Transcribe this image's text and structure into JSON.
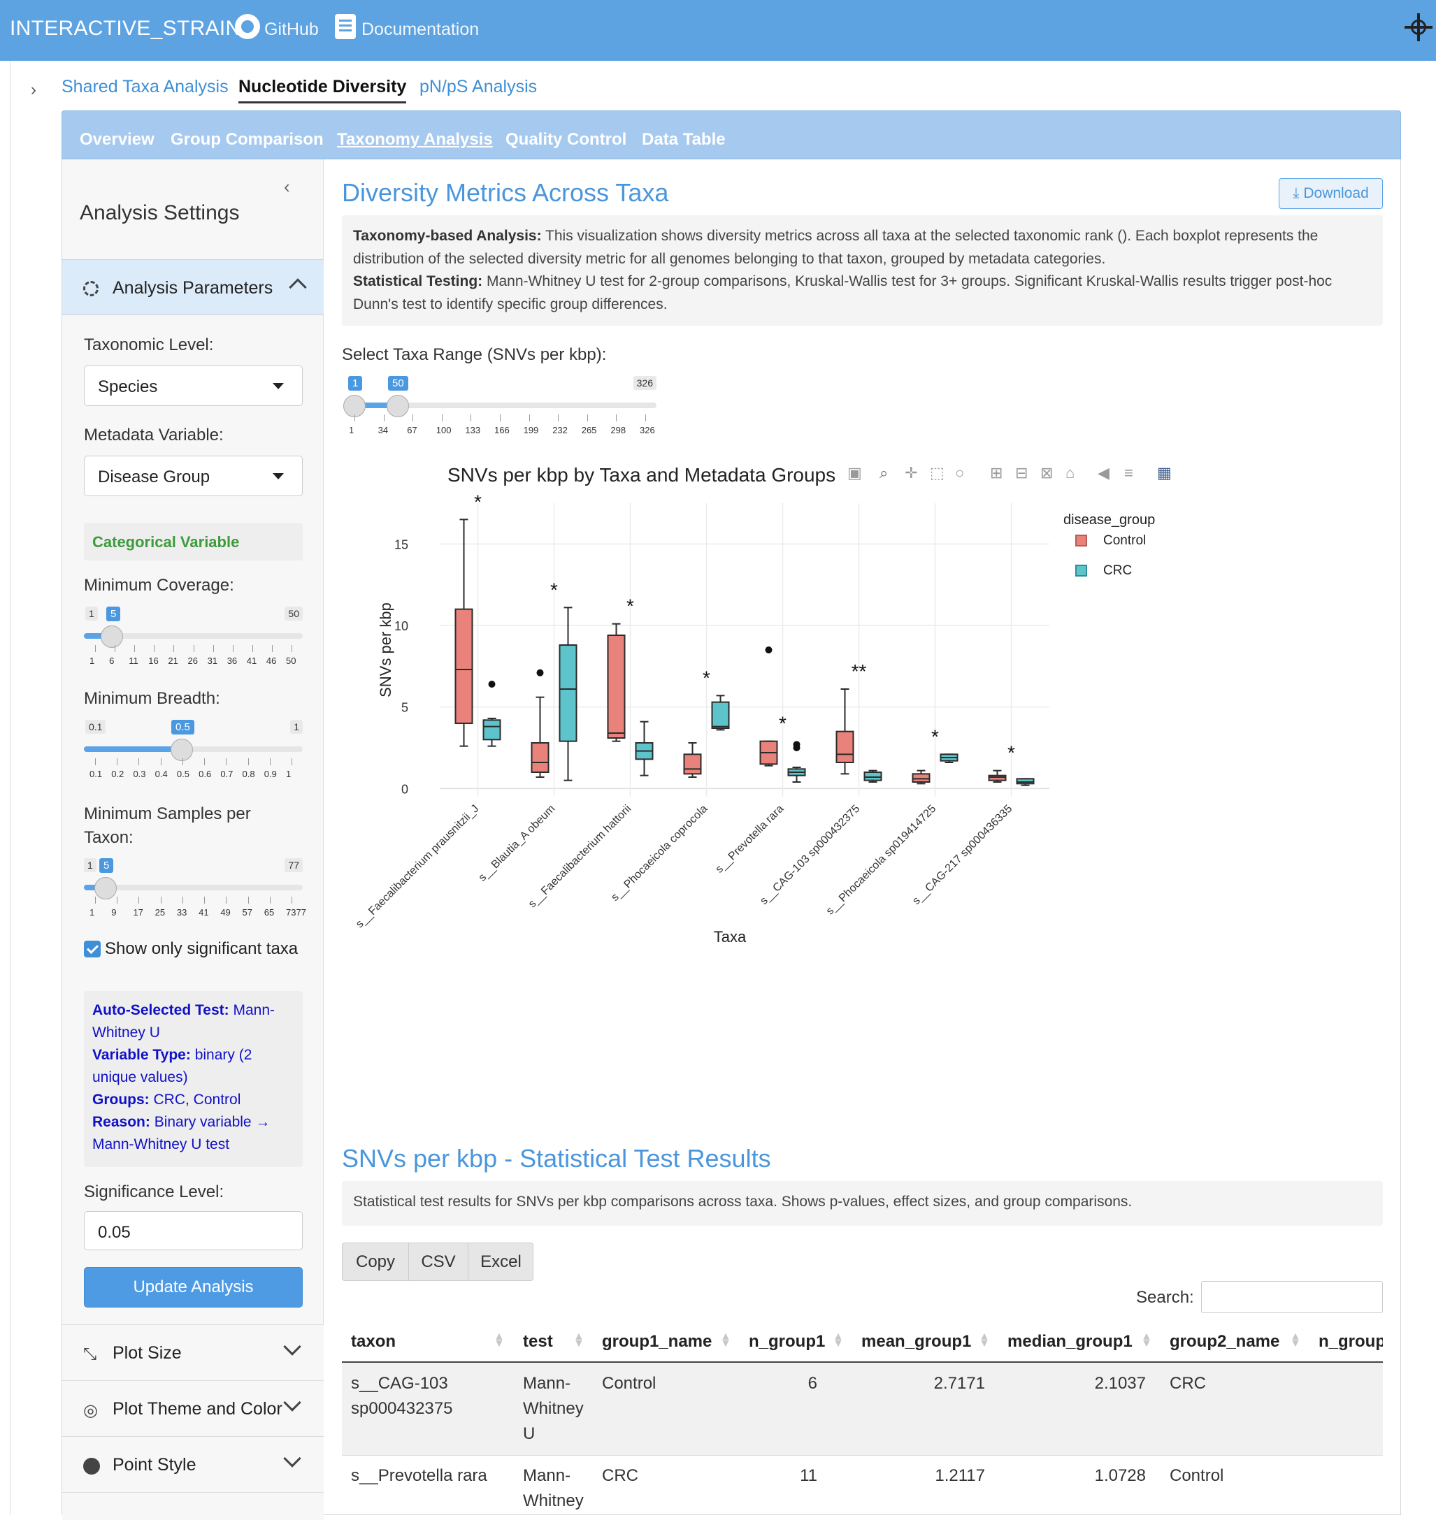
{
  "app": {
    "brand": "INTERACTIVE_STRAIN",
    "github": "GitHub",
    "documentation": "Documentation"
  },
  "page_tabs": [
    "Shared Taxa Analysis",
    "Nucleotide Diversity",
    "pN/pS Analysis"
  ],
  "sub_tabs": [
    "Overview",
    "Group Comparison",
    "Taxonomy Analysis",
    "Quality Control",
    "Data Table"
  ],
  "sidebar": {
    "title": "Analysis Settings",
    "params_header": "Analysis Parameters",
    "tax_level_label": "Taxonomic Level:",
    "tax_level_value": "Species",
    "meta_label": "Metadata Variable:",
    "meta_value": "Disease Group",
    "variable_badge": "Categorical Variable",
    "min_cov_label": "Minimum Coverage:",
    "min_cov": {
      "min": "1",
      "value": "5",
      "max": "50",
      "ticks": [
        "1",
        "6",
        "11",
        "16",
        "21",
        "26",
        "31",
        "36",
        "41",
        "46",
        "50"
      ]
    },
    "min_breadth_label": "Minimum Breadth:",
    "min_breadth": {
      "min": "0.1",
      "value": "0.5",
      "max": "1",
      "ticks": [
        "0.1",
        "0.2",
        "0.3",
        "0.4",
        "0.5",
        "0.6",
        "0.7",
        "0.8",
        "0.9",
        "1"
      ]
    },
    "min_samples_label": "Minimum Samples per Taxon:",
    "min_samples": {
      "min": "1",
      "value": "5",
      "max": "77",
      "ticks": [
        "1",
        "9",
        "17",
        "25",
        "33",
        "41",
        "49",
        "57",
        "65",
        "7377"
      ]
    },
    "show_sig_label": "Show only significant taxa",
    "info": {
      "test_key": "Auto-Selected Test:",
      "test_val": "Mann-Whitney U",
      "vtype_key": "Variable Type:",
      "vtype_val": "binary (2 unique values)",
      "groups_key": "Groups:",
      "groups_val": "CRC, Control",
      "reason_key": "Reason:",
      "reason_val": "Binary variable → Mann-Whitney U test"
    },
    "sig_label": "Significance Level:",
    "sig_value": "0.05",
    "update_btn": "Update Analysis",
    "plot_size": "Plot Size",
    "plot_theme": "Plot Theme and Color",
    "point_style": "Point Style"
  },
  "main": {
    "title": "Diversity Metrics Across Taxa",
    "download": "Download",
    "desc_bold1": "Taxonomy-based Analysis:",
    "desc_text1": "This visualization shows diversity metrics across all taxa at the selected taxonomic rank (). Each boxplot represents the distribution of the selected diversity metric for all genomes belonging to that taxon, grouped by metadata categories.",
    "desc_bold2": "Statistical Testing:",
    "desc_text2": "Mann-Whitney U test for 2-group comparisons, Kruskal-Wallis test for 3+ groups. Significant Kruskal-Wallis results trigger post-hoc Dunn's test to identify specific group differences.",
    "range_label": "Select Taxa Range (SNVs per kbp):",
    "range": {
      "min": "1",
      "lo": "1",
      "hi": "50",
      "max": "326",
      "ticks": [
        "1",
        "34",
        "67",
        "100",
        "133",
        "166",
        "199",
        "232",
        "265",
        "298",
        "326"
      ]
    },
    "stats_title": "SNVs per kbp - Statistical Test Results",
    "stats_desc": "Statistical test results for SNVs per kbp comparisons across taxa. Shows p-values, effect sizes, and group comparisons.",
    "btns": [
      "Copy",
      "CSV",
      "Excel"
    ],
    "search_label": "Search:",
    "columns": [
      "taxon",
      "test",
      "group1_name",
      "n_group1",
      "mean_group1",
      "median_group1",
      "group2_name",
      "n_group"
    ],
    "rows": [
      {
        "taxon": "s__CAG-103 sp000432375",
        "test": "Mann-Whitney U",
        "group1_name": "Control",
        "n_group1": "6",
        "mean_group1": "2.7171",
        "median_group1": "2.1037",
        "group2_name": "CRC"
      },
      {
        "taxon": "s__Prevotella rara",
        "test": "Mann-Whitney",
        "group1_name": "CRC",
        "n_group1": "11",
        "mean_group1": "1.2117",
        "median_group1": "1.0728",
        "group2_name": "Control"
      }
    ]
  },
  "chart_data": {
    "type": "box",
    "title": "SNVs per kbp by Taxa and Metadata Groups",
    "xlabel": "Taxa",
    "ylabel": "SNVs per kbp",
    "ylim": [
      -0.5,
      17.5
    ],
    "yticks": [
      0,
      5,
      10,
      15
    ],
    "legend_title": "disease_group",
    "legend_position": "top-right",
    "colors": {
      "Control": "#e8827a",
      "CRC": "#5ec4cc"
    },
    "categories": [
      "s__Faecalibacterium prausnitzii_J",
      "s__Blautia_A obeum",
      "s__Faecalibacterium hattorii",
      "s__Phocaeicola coprocola",
      "s__Prevotella rara",
      "s__CAG-103 sp000432375",
      "s__Phocaeicola sp019414725",
      "s__CAG-217 sp000436335"
    ],
    "significance": [
      "*",
      "*",
      "*",
      "*",
      "*",
      "**",
      "*",
      "*"
    ],
    "series": [
      {
        "name": "Control",
        "boxes": [
          {
            "min": 2.6,
            "q1": 4.0,
            "median": 7.3,
            "q3": 11.0,
            "max": 16.5
          },
          {
            "min": 0.7,
            "q1": 1.0,
            "median": 1.6,
            "q3": 2.8,
            "max": 5.6,
            "outliers": [
              7.1
            ]
          },
          {
            "min": 2.9,
            "q1": 3.1,
            "median": 3.4,
            "q3": 9.4,
            "max": 10.1
          },
          {
            "min": 0.7,
            "q1": 0.9,
            "median": 1.2,
            "q3": 2.1,
            "max": 2.8
          },
          {
            "min": 1.4,
            "q1": 1.5,
            "median": 2.2,
            "q3": 2.9,
            "max": 2.9,
            "outliers": [
              8.5
            ]
          },
          {
            "min": 0.9,
            "q1": 1.6,
            "median": 2.1,
            "q3": 3.5,
            "max": 6.1
          },
          {
            "min": 0.3,
            "q1": 0.4,
            "median": 0.6,
            "q3": 0.9,
            "max": 1.1
          },
          {
            "min": 0.4,
            "q1": 0.5,
            "median": 0.7,
            "q3": 0.8,
            "max": 1.1
          }
        ]
      },
      {
        "name": "CRC",
        "boxes": [
          {
            "min": 2.6,
            "q1": 3.0,
            "median": 3.8,
            "q3": 4.2,
            "max": 4.3,
            "outliers": [
              6.4
            ]
          },
          {
            "min": 0.5,
            "q1": 2.9,
            "median": 6.1,
            "q3": 8.8,
            "max": 11.1
          },
          {
            "min": 0.8,
            "q1": 1.8,
            "median": 2.3,
            "q3": 2.8,
            "max": 4.1
          },
          {
            "min": 3.6,
            "q1": 3.7,
            "median": 3.8,
            "q3": 5.3,
            "max": 5.7
          },
          {
            "min": 0.4,
            "q1": 0.8,
            "median": 1.0,
            "q3": 1.2,
            "max": 1.3,
            "outliers": [
              2.5,
              2.7
            ]
          },
          {
            "min": 0.4,
            "q1": 0.5,
            "median": 0.7,
            "q3": 1.0,
            "max": 1.1
          },
          {
            "min": 1.6,
            "q1": 1.7,
            "median": 1.9,
            "q3": 2.1,
            "max": 2.1
          },
          {
            "min": 0.2,
            "q1": 0.3,
            "median": 0.4,
            "q3": 0.6,
            "max": 0.6
          }
        ]
      }
    ]
  }
}
